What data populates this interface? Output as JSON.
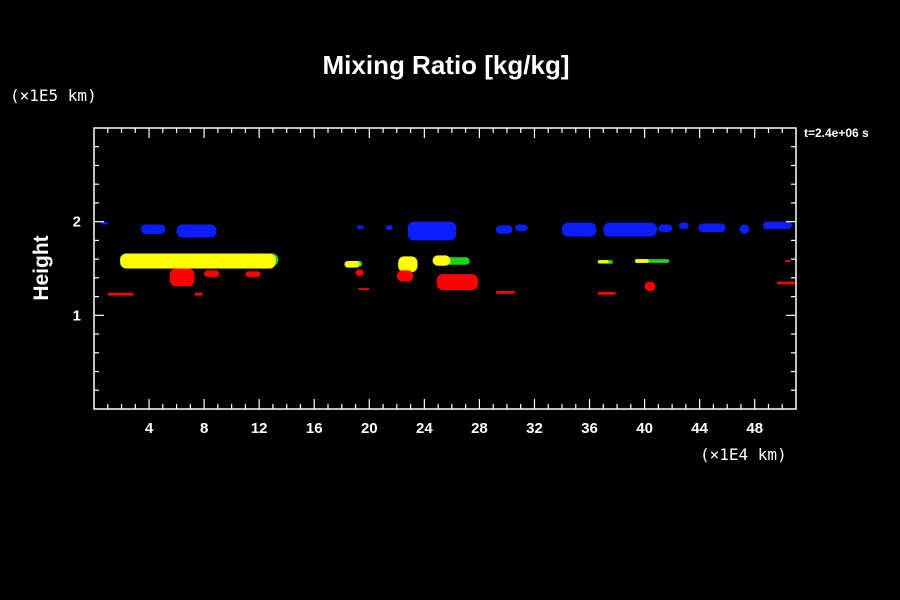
{
  "chart_data": {
    "type": "heatmap",
    "title": "Mixing Ratio [kg/kg]",
    "ylabel": "Height",
    "x_unit": "(×1E4 km)",
    "y_unit": "(×1E5 km)",
    "time_label": "t=2.4e+06 s",
    "xlim": [
      0,
      51
    ],
    "ylim": [
      0,
      3
    ],
    "x_ticks": [
      4,
      8,
      12,
      16,
      20,
      24,
      28,
      32,
      36,
      40,
      44,
      48
    ],
    "y_ticks": [
      1,
      2
    ],
    "colors": {
      "blue": "#0a1eff",
      "green": "#1ed21e",
      "yellow": "#ffff00",
      "red": "#ff0000"
    },
    "regions": [
      {
        "level": "blue",
        "x": [
          3.4,
          5.2
        ],
        "y": [
          1.87,
          1.97
        ]
      },
      {
        "level": "blue",
        "x": [
          6.0,
          8.9
        ],
        "y": [
          1.83,
          1.97
        ]
      },
      {
        "level": "blue",
        "x": [
          0.5,
          1.0
        ],
        "y": [
          1.97,
          2.0
        ]
      },
      {
        "level": "blue",
        "x": [
          19.1,
          19.6
        ],
        "y": [
          1.92,
          1.96
        ]
      },
      {
        "level": "blue",
        "x": [
          21.2,
          21.7
        ],
        "y": [
          1.91,
          1.96
        ]
      },
      {
        "level": "blue",
        "x": [
          22.8,
          26.3
        ],
        "y": [
          1.8,
          2.0
        ]
      },
      {
        "level": "blue",
        "x": [
          29.2,
          30.4
        ],
        "y": [
          1.87,
          1.96
        ]
      },
      {
        "level": "blue",
        "x": [
          30.6,
          31.5
        ],
        "y": [
          1.9,
          1.97
        ]
      },
      {
        "level": "blue",
        "x": [
          34.0,
          36.5
        ],
        "y": [
          1.84,
          1.99
        ]
      },
      {
        "level": "blue",
        "x": [
          37.0,
          40.9
        ],
        "y": [
          1.84,
          1.99
        ]
      },
      {
        "level": "blue",
        "x": [
          41.0,
          42.0
        ],
        "y": [
          1.89,
          1.97
        ]
      },
      {
        "level": "blue",
        "x": [
          42.5,
          43.2
        ],
        "y": [
          1.92,
          1.99
        ]
      },
      {
        "level": "blue",
        "x": [
          43.9,
          45.9
        ],
        "y": [
          1.89,
          1.98
        ]
      },
      {
        "level": "blue",
        "x": [
          46.9,
          47.6
        ],
        "y": [
          1.87,
          1.97
        ]
      },
      {
        "level": "blue",
        "x": [
          48.6,
          50.7
        ],
        "y": [
          1.92,
          2.0
        ]
      },
      {
        "level": "green",
        "x": [
          1.9,
          13.4
        ],
        "y": [
          1.53,
          1.66
        ]
      },
      {
        "level": "green",
        "x": [
          18.2,
          19.5
        ],
        "y": [
          1.52,
          1.58
        ]
      },
      {
        "level": "green",
        "x": [
          24.6,
          27.3
        ],
        "y": [
          1.54,
          1.62
        ]
      },
      {
        "level": "green",
        "x": [
          36.6,
          37.7
        ],
        "y": [
          1.55,
          1.59
        ]
      },
      {
        "level": "green",
        "x": [
          39.3,
          41.8
        ],
        "y": [
          1.56,
          1.6
        ]
      },
      {
        "level": "yellow",
        "x": [
          1.9,
          13.2
        ],
        "y": [
          1.5,
          1.66
        ]
      },
      {
        "level": "yellow",
        "x": [
          18.2,
          19.3
        ],
        "y": [
          1.51,
          1.58
        ]
      },
      {
        "level": "yellow",
        "x": [
          22.1,
          23.5
        ],
        "y": [
          1.46,
          1.63
        ]
      },
      {
        "level": "yellow",
        "x": [
          24.6,
          25.9
        ],
        "y": [
          1.53,
          1.64
        ]
      },
      {
        "level": "yellow",
        "x": [
          36.6,
          37.4
        ],
        "y": [
          1.56,
          1.59
        ]
      },
      {
        "level": "yellow",
        "x": [
          39.3,
          40.3
        ],
        "y": [
          1.56,
          1.6
        ]
      },
      {
        "level": "red",
        "x": [
          1.0,
          2.9
        ],
        "y": [
          1.21,
          1.24
        ]
      },
      {
        "level": "red",
        "x": [
          5.5,
          7.3
        ],
        "y": [
          1.31,
          1.5
        ]
      },
      {
        "level": "red",
        "x": [
          7.3,
          7.9
        ],
        "y": [
          1.21,
          1.24
        ]
      },
      {
        "level": "red",
        "x": [
          8.0,
          9.1
        ],
        "y": [
          1.41,
          1.48
        ]
      },
      {
        "level": "red",
        "x": [
          11.0,
          12.1
        ],
        "y": [
          1.41,
          1.47
        ]
      },
      {
        "level": "red",
        "x": [
          19.0,
          19.6
        ],
        "y": [
          1.42,
          1.49
        ]
      },
      {
        "level": "red",
        "x": [
          19.2,
          20.0
        ],
        "y": [
          1.27,
          1.29
        ]
      },
      {
        "level": "red",
        "x": [
          22.0,
          23.2
        ],
        "y": [
          1.36,
          1.48
        ]
      },
      {
        "level": "red",
        "x": [
          24.9,
          27.9
        ],
        "y": [
          1.27,
          1.44
        ]
      },
      {
        "level": "red",
        "x": [
          29.2,
          30.6
        ],
        "y": [
          1.23,
          1.26
        ]
      },
      {
        "level": "red",
        "x": [
          36.6,
          37.9
        ],
        "y": [
          1.22,
          1.25
        ]
      },
      {
        "level": "red",
        "x": [
          40.0,
          40.8
        ],
        "y": [
          1.26,
          1.36
        ]
      },
      {
        "level": "red",
        "x": [
          49.6,
          51.0
        ],
        "y": [
          1.33,
          1.36
        ]
      },
      {
        "level": "red",
        "x": [
          50.2,
          50.6
        ],
        "y": [
          1.57,
          1.59
        ]
      }
    ]
  }
}
